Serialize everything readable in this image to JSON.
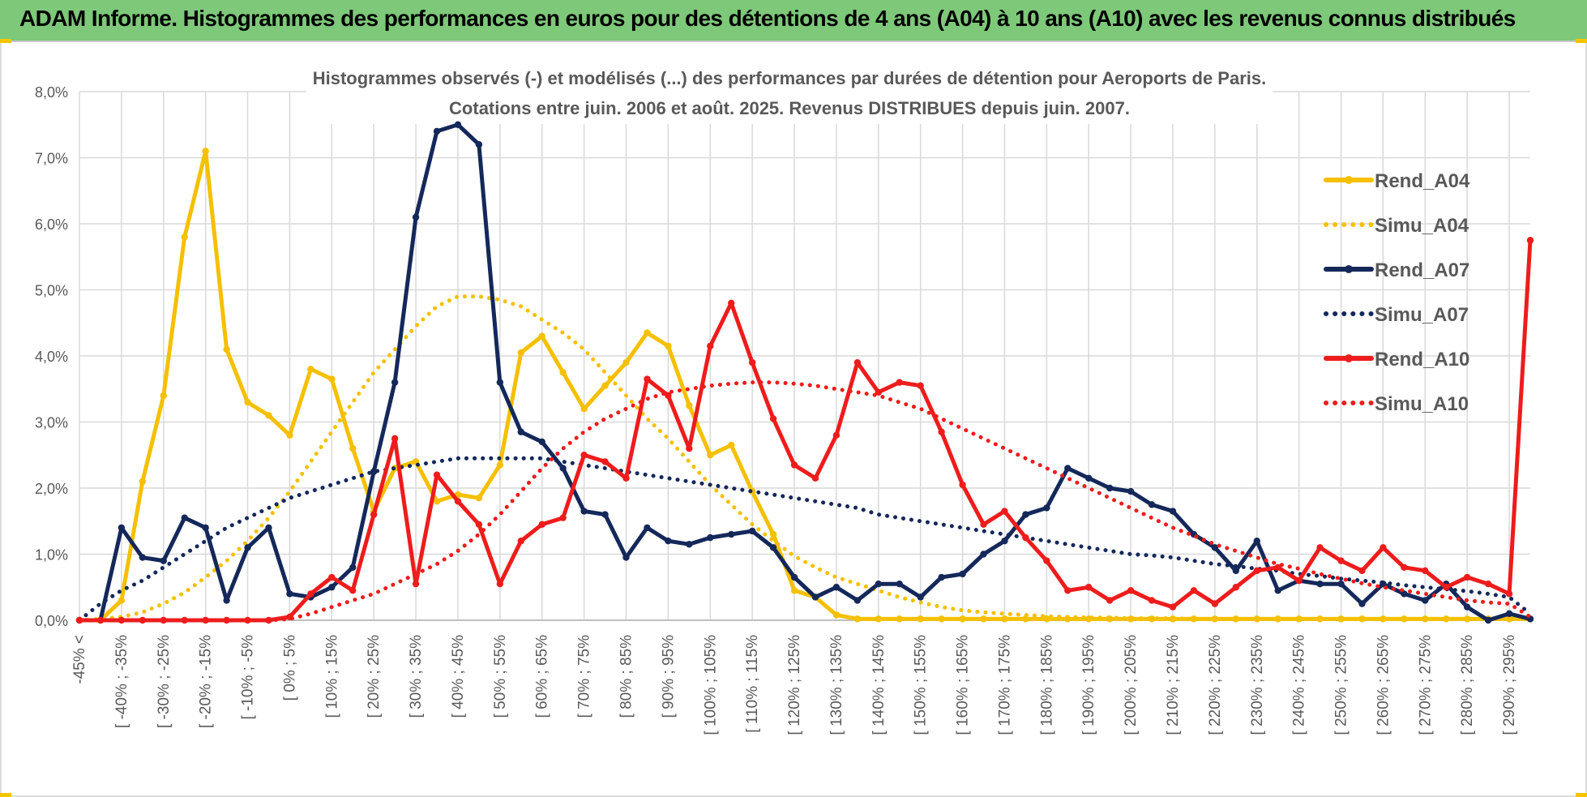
{
  "header": {
    "title": "ADAM Informe. Histogrammes des performances en euros pour des détentions de 4 ans (A04) à 10 ans (A10) avec les revenus connus distribués"
  },
  "colors": {
    "banner": "#7ec87a",
    "A04": "#f5c000",
    "A07": "#14285a",
    "A10": "#ee1c1c",
    "grid": "#d9d9d9",
    "text": "#595959"
  },
  "chart_data": {
    "type": "line",
    "title_lines": [
      "Histogrammes observés (-) et modélisés (...) des performances par durées de détention pour Aeroports de Paris.",
      "Cotations entre juin. 2006 et août. 2025. Revenus DISTRIBUES depuis juin. 2007."
    ],
    "xlabel": "",
    "ylabel": "",
    "ylim": [
      0,
      8
    ],
    "y_unit": "%",
    "y_ticks": [
      "0,0%",
      "1,0%",
      "2,0%",
      "3,0%",
      "4,0%",
      "5,0%",
      "6,0%",
      "7,0%",
      "8,0%"
    ],
    "grid": true,
    "legend_position": "right",
    "x_ticks": [
      "-45% <",
      "[ -40% ; -35%",
      "[ -30% ; -25%",
      "[ -20% ; -15%",
      "[ -10% ; -5%",
      "[ 0% ; 5%",
      "[ 10% ; 15%",
      "[ 20% ; 25%",
      "[ 30% ; 35%",
      "[ 40% ; 45%",
      "[ 50% ; 55%",
      "[ 60% ; 65%",
      "[ 70% ; 75%",
      "[ 80% ; 85%",
      "[ 90% ; 95%",
      "[ 100% ; 105%",
      "[ 110% ; 115%",
      "[ 120% ; 125%",
      "[ 130% ; 135%",
      "[ 140% ; 145%",
      "[ 150% ; 155%",
      "[ 160% ; 165%",
      "[ 170% ; 175%",
      "[ 180% ; 185%",
      "[ 190% ; 195%",
      "[ 200% ; 205%",
      "[ 210% ; 215%",
      "[ 220% ; 225%",
      "[ 230% ; 235%",
      "[ 240% ; 245%",
      "[ 250% ; 255%",
      "[ 260% ; 265%",
      "[ 270% ; 275%",
      "[ 280% ; 285%",
      "[ 290% ; 295%"
    ],
    "x_count": 70,
    "series": [
      {
        "name": "Rend_A04",
        "style": "solid",
        "color": "#f5c000",
        "values": [
          0,
          0,
          0.3,
          2.1,
          3.4,
          5.8,
          7.1,
          4.1,
          3.3,
          3.1,
          2.8,
          3.8,
          3.65,
          2.6,
          1.65,
          2.3,
          2.4,
          1.8,
          1.9,
          1.85,
          2.35,
          4.05,
          4.3,
          3.75,
          3.2,
          3.55,
          3.9,
          4.35,
          4.15,
          3.25,
          2.5,
          2.65,
          1.95,
          1.3,
          0.45,
          0.35,
          0.08,
          0.02,
          0.02,
          0.02,
          0.02,
          0.02,
          0.02,
          0.02,
          0.02,
          0.02,
          0.02,
          0.02,
          0.02,
          0.02,
          0.02,
          0.02,
          0.02,
          0.02,
          0.02,
          0.02,
          0.02,
          0.02,
          0.02,
          0.02,
          0.02,
          0.02,
          0.02,
          0.02,
          0.02,
          0.02,
          0.02,
          0.02,
          0.02,
          0.02
        ]
      },
      {
        "name": "Simu_A04",
        "style": "dotted",
        "color": "#f5c000",
        "values": [
          0,
          0.02,
          0.05,
          0.12,
          0.25,
          0.42,
          0.65,
          0.9,
          1.2,
          1.55,
          1.95,
          2.4,
          2.85,
          3.3,
          3.75,
          4.1,
          4.45,
          4.75,
          4.9,
          4.9,
          4.85,
          4.75,
          4.55,
          4.35,
          4.1,
          3.75,
          3.4,
          3.05,
          2.75,
          2.4,
          2.05,
          1.75,
          1.45,
          1.2,
          0.97,
          0.8,
          0.65,
          0.55,
          0.45,
          0.35,
          0.27,
          0.2,
          0.15,
          0.12,
          0.1,
          0.08,
          0.06,
          0.05,
          0.04,
          0.04,
          0.03,
          0.03,
          0.03,
          0.02,
          0.02,
          0.02,
          0.02,
          0.02,
          0.02,
          0.02,
          0.02,
          0.02,
          0.02,
          0.02,
          0.02,
          0.02,
          0.02,
          0.02,
          0.02,
          0.02
        ]
      },
      {
        "name": "Rend_A07",
        "style": "solid",
        "color": "#14285a",
        "values": [
          0,
          0,
          1.4,
          0.95,
          0.9,
          1.55,
          1.4,
          0.3,
          1.1,
          1.4,
          0.4,
          0.35,
          0.5,
          0.8,
          2.25,
          3.6,
          6.1,
          7.4,
          7.5,
          7.2,
          3.6,
          2.85,
          2.7,
          2.3,
          1.65,
          1.6,
          0.95,
          1.4,
          1.2,
          1.15,
          1.25,
          1.3,
          1.35,
          1.1,
          0.65,
          0.35,
          0.5,
          0.3,
          0.55,
          0.55,
          0.35,
          0.65,
          0.7,
          1.0,
          1.2,
          1.6,
          1.7,
          2.3,
          2.15,
          2.0,
          1.95,
          1.75,
          1.65,
          1.3,
          1.1,
          0.75,
          1.2,
          0.45,
          0.6,
          0.55,
          0.55,
          0.25,
          0.55,
          0.4,
          0.3,
          0.55,
          0.2,
          0.0,
          0.1,
          0.02
        ]
      },
      {
        "name": "Simu_A07",
        "style": "dotted",
        "color": "#14285a",
        "values": [
          0,
          0.25,
          0.45,
          0.6,
          0.8,
          1.0,
          1.2,
          1.4,
          1.55,
          1.7,
          1.85,
          1.95,
          2.05,
          2.15,
          2.25,
          2.3,
          2.35,
          2.4,
          2.45,
          2.45,
          2.45,
          2.45,
          2.45,
          2.4,
          2.35,
          2.3,
          2.25,
          2.2,
          2.15,
          2.1,
          2.05,
          2.0,
          1.95,
          1.9,
          1.85,
          1.8,
          1.75,
          1.7,
          1.6,
          1.55,
          1.5,
          1.45,
          1.4,
          1.35,
          1.3,
          1.25,
          1.2,
          1.15,
          1.1,
          1.05,
          1.0,
          0.98,
          0.95,
          0.9,
          0.85,
          0.82,
          0.78,
          0.75,
          0.7,
          0.67,
          0.63,
          0.6,
          0.57,
          0.53,
          0.5,
          0.47,
          0.44,
          0.4,
          0.35,
          0.1
        ]
      },
      {
        "name": "Rend_A10",
        "style": "solid",
        "color": "#ee1c1c",
        "values": [
          0,
          0,
          0,
          0,
          0,
          0,
          0,
          0,
          0,
          0,
          0.05,
          0.4,
          0.65,
          0.45,
          1.6,
          2.75,
          0.55,
          2.2,
          1.8,
          1.45,
          0.55,
          1.2,
          1.45,
          1.55,
          2.5,
          2.4,
          2.15,
          3.65,
          3.4,
          2.6,
          4.15,
          4.8,
          3.9,
          3.05,
          2.35,
          2.15,
          2.8,
          3.9,
          3.45,
          3.6,
          3.55,
          2.85,
          2.05,
          1.45,
          1.65,
          1.25,
          0.9,
          0.45,
          0.5,
          0.3,
          0.45,
          0.3,
          0.2,
          0.45,
          0.25,
          0.5,
          0.75,
          0.8,
          0.6,
          1.1,
          0.9,
          0.75,
          1.1,
          0.8,
          0.75,
          0.5,
          0.65,
          0.55,
          0.4,
          5.75
        ]
      },
      {
        "name": "Simu_A10",
        "style": "dotted",
        "color": "#ee1c1c",
        "values": [
          0,
          0,
          0,
          0,
          0,
          0,
          0,
          0,
          0,
          0,
          0.02,
          0.1,
          0.2,
          0.3,
          0.4,
          0.55,
          0.7,
          0.85,
          1.05,
          1.3,
          1.6,
          1.95,
          2.3,
          2.6,
          2.85,
          3.05,
          3.2,
          3.35,
          3.45,
          3.5,
          3.55,
          3.58,
          3.6,
          3.6,
          3.58,
          3.55,
          3.5,
          3.45,
          3.4,
          3.3,
          3.2,
          3.05,
          2.9,
          2.75,
          2.6,
          2.45,
          2.3,
          2.15,
          2.0,
          1.85,
          1.7,
          1.55,
          1.4,
          1.28,
          1.15,
          1.05,
          0.95,
          0.85,
          0.78,
          0.7,
          0.63,
          0.56,
          0.5,
          0.45,
          0.4,
          0.35,
          0.3,
          0.27,
          0.25,
          0.05
        ]
      }
    ]
  }
}
